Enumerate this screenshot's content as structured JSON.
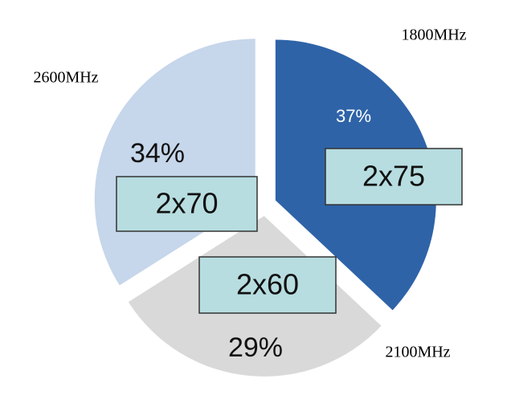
{
  "chart_data": {
    "type": "pie",
    "categories": [
      "1800MHz",
      "2100MHz",
      "2600MHz"
    ],
    "values": [
      37,
      29,
      34
    ],
    "value_labels": [
      "37%",
      "29%",
      "34%"
    ],
    "colors": [
      "#2e63a8",
      "#d9d9d9",
      "#c6d6eb"
    ],
    "annotations": [
      "2x75",
      "2x60",
      "2x70"
    ]
  }
}
